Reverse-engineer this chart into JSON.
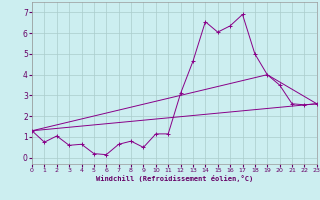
{
  "xlabel": "Windchill (Refroidissement éolien,°C)",
  "background_color": "#cceef0",
  "grid_color": "#aacccc",
  "line_color": "#880088",
  "xlim": [
    0,
    23
  ],
  "ylim": [
    -0.3,
    7.5
  ],
  "xticks": [
    0,
    1,
    2,
    3,
    4,
    5,
    6,
    7,
    8,
    9,
    10,
    11,
    12,
    13,
    14,
    15,
    16,
    17,
    18,
    19,
    20,
    21,
    22,
    23
  ],
  "yticks": [
    0,
    1,
    2,
    3,
    4,
    5,
    6,
    7
  ],
  "series1_x": [
    0,
    1,
    2,
    3,
    4,
    5,
    6,
    7,
    8,
    9,
    10,
    11,
    12,
    13,
    14,
    15,
    16,
    17,
    18,
    19,
    20,
    21,
    22,
    23
  ],
  "series1_y": [
    1.3,
    0.75,
    1.05,
    0.6,
    0.65,
    0.2,
    0.15,
    0.65,
    0.8,
    0.5,
    1.15,
    1.15,
    3.1,
    4.65,
    6.55,
    6.05,
    6.35,
    6.9,
    5.0,
    4.0,
    3.5,
    2.6,
    2.55,
    2.6
  ],
  "series3_x": [
    0,
    23
  ],
  "series3_y": [
    1.3,
    2.6
  ],
  "series4_x": [
    0,
    19,
    23
  ],
  "series4_y": [
    1.3,
    4.0,
    2.6
  ]
}
